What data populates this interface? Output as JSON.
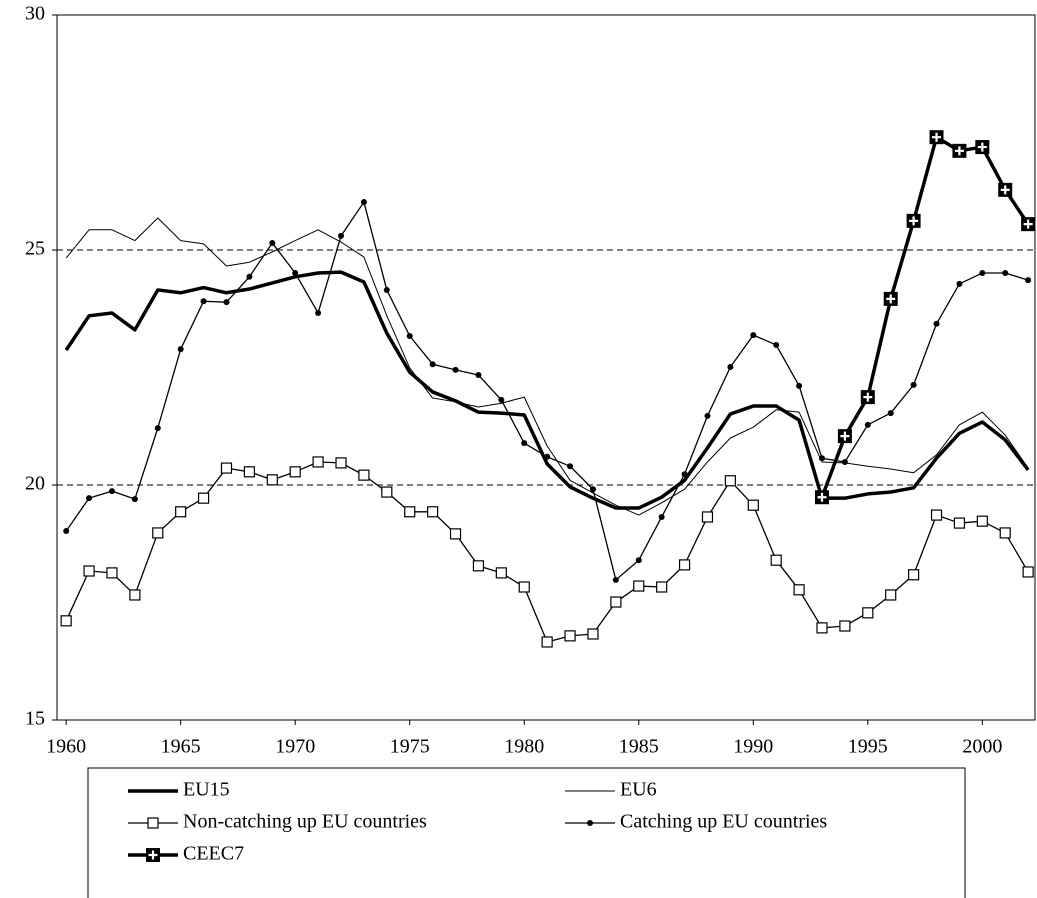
{
  "chart_data": {
    "type": "line",
    "x": [
      1960,
      1961,
      1962,
      1963,
      1964,
      1965,
      1966,
      1967,
      1968,
      1969,
      1970,
      1971,
      1972,
      1973,
      1974,
      1975,
      1976,
      1977,
      1978,
      1979,
      1980,
      1981,
      1982,
      1983,
      1984,
      1985,
      1986,
      1987,
      1988,
      1989,
      1990,
      1991,
      1992,
      1993,
      1994,
      1995,
      1996,
      1997,
      1998,
      1999,
      2000,
      2001,
      2002
    ],
    "xlim": [
      1959.6,
      2002.3
    ],
    "xticks": [
      1960,
      1965,
      1970,
      1975,
      1980,
      1985,
      1990,
      1995,
      2000
    ],
    "ylim": [
      15,
      30
    ],
    "yticks": [
      15,
      20,
      25,
      30
    ],
    "grid": true,
    "legend": "bottom",
    "series": [
      {
        "name": "EU15",
        "color": "#000000",
        "line_width": 3.5,
        "marker": "none",
        "values": [
          22.87,
          23.6,
          23.66,
          23.3,
          24.15,
          24.09,
          24.2,
          24.09,
          24.17,
          24.3,
          24.43,
          24.51,
          24.53,
          24.32,
          23.23,
          22.4,
          21.98,
          21.79,
          21.55,
          21.53,
          21.49,
          20.45,
          19.96,
          19.72,
          19.51,
          19.51,
          19.74,
          20.1,
          20.79,
          21.51,
          21.68,
          21.68,
          21.38,
          19.72,
          19.72,
          19.81,
          19.85,
          19.94,
          20.57,
          21.1,
          21.34,
          20.96,
          20.32
        ]
      },
      {
        "name": "EU6",
        "color": "#000000",
        "line_width": 1,
        "marker": "none",
        "values": [
          24.83,
          25.43,
          25.43,
          25.2,
          25.68,
          25.2,
          25.13,
          24.66,
          24.74,
          24.96,
          25.2,
          25.43,
          25.17,
          24.85,
          23.6,
          22.49,
          21.85,
          21.77,
          21.66,
          21.74,
          21.87,
          20.83,
          20.1,
          19.83,
          19.57,
          19.36,
          19.62,
          19.91,
          20.49,
          21.0,
          21.23,
          21.6,
          21.55,
          20.49,
          20.47,
          20.4,
          20.34,
          20.26,
          20.64,
          21.28,
          21.55,
          21.06,
          20.36
        ]
      },
      {
        "name": "Non-catching up EU countries",
        "color": "#000000",
        "line_width": 1.3,
        "marker": "square",
        "values": [
          17.11,
          18.17,
          18.13,
          17.66,
          18.98,
          19.43,
          19.72,
          20.36,
          20.28,
          20.11,
          20.28,
          20.49,
          20.47,
          20.21,
          19.85,
          19.43,
          19.43,
          18.96,
          18.28,
          18.13,
          17.83,
          16.66,
          16.79,
          16.83,
          17.51,
          17.85,
          17.83,
          18.3,
          19.32,
          20.09,
          19.57,
          18.4,
          17.77,
          16.96,
          17.0,
          17.28,
          17.66,
          18.09,
          19.36,
          19.19,
          19.23,
          18.98,
          18.15
        ]
      },
      {
        "name": "Catching up EU countries",
        "color": "#000000",
        "line_width": 1.3,
        "marker": "dot",
        "values": [
          19.02,
          19.72,
          19.87,
          19.7,
          21.21,
          22.89,
          23.91,
          23.89,
          24.43,
          25.15,
          24.51,
          23.66,
          25.3,
          26.02,
          24.15,
          23.17,
          22.57,
          22.45,
          22.34,
          21.81,
          20.89,
          20.6,
          20.4,
          19.91,
          17.98,
          18.4,
          19.32,
          20.23,
          21.47,
          22.51,
          23.19,
          22.98,
          22.11,
          20.57,
          20.49,
          21.28,
          21.53,
          22.13,
          23.43,
          24.28,
          24.51,
          24.51,
          24.36
        ]
      },
      {
        "name": "CEEC7",
        "color": "#000000",
        "line_width": 3.5,
        "marker": "cross-square",
        "values": [
          null,
          null,
          null,
          null,
          null,
          null,
          null,
          null,
          null,
          null,
          null,
          null,
          null,
          null,
          null,
          null,
          null,
          null,
          null,
          null,
          null,
          null,
          null,
          null,
          null,
          null,
          null,
          null,
          null,
          null,
          null,
          null,
          null,
          19.74,
          21.04,
          21.87,
          23.96,
          25.62,
          27.4,
          27.11,
          27.19,
          26.28,
          25.55
        ]
      }
    ]
  }
}
